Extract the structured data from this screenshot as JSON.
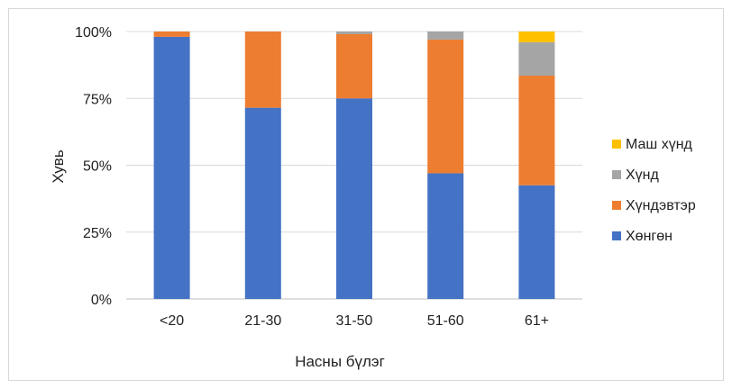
{
  "chart_data": {
    "type": "bar",
    "stacked": true,
    "percent_stacked": true,
    "title": "",
    "xlabel": "Насны бүлэг",
    "ylabel": "Хувь",
    "categories": [
      "<20",
      "21-30",
      "31-50",
      "51-60",
      "61+"
    ],
    "y_ticks": [
      "0%",
      "25%",
      "50%",
      "75%",
      "100%"
    ],
    "ylim": [
      0,
      100
    ],
    "grid": true,
    "legend_position": "right",
    "series": [
      {
        "name": "Хөнгөн",
        "color": "#4472C4",
        "values": [
          98,
          71.5,
          75,
          47,
          42.5
        ]
      },
      {
        "name": "Хүндэвтэр",
        "color": "#ED7D31",
        "values": [
          2,
          28.5,
          24,
          50,
          41
        ]
      },
      {
        "name": "Хүнд",
        "color": "#A5A5A5",
        "values": [
          0,
          0,
          1,
          3,
          12.5
        ]
      },
      {
        "name": "Маш хүнд",
        "color": "#FFC000",
        "values": [
          0,
          0,
          0,
          0,
          4
        ]
      }
    ]
  }
}
